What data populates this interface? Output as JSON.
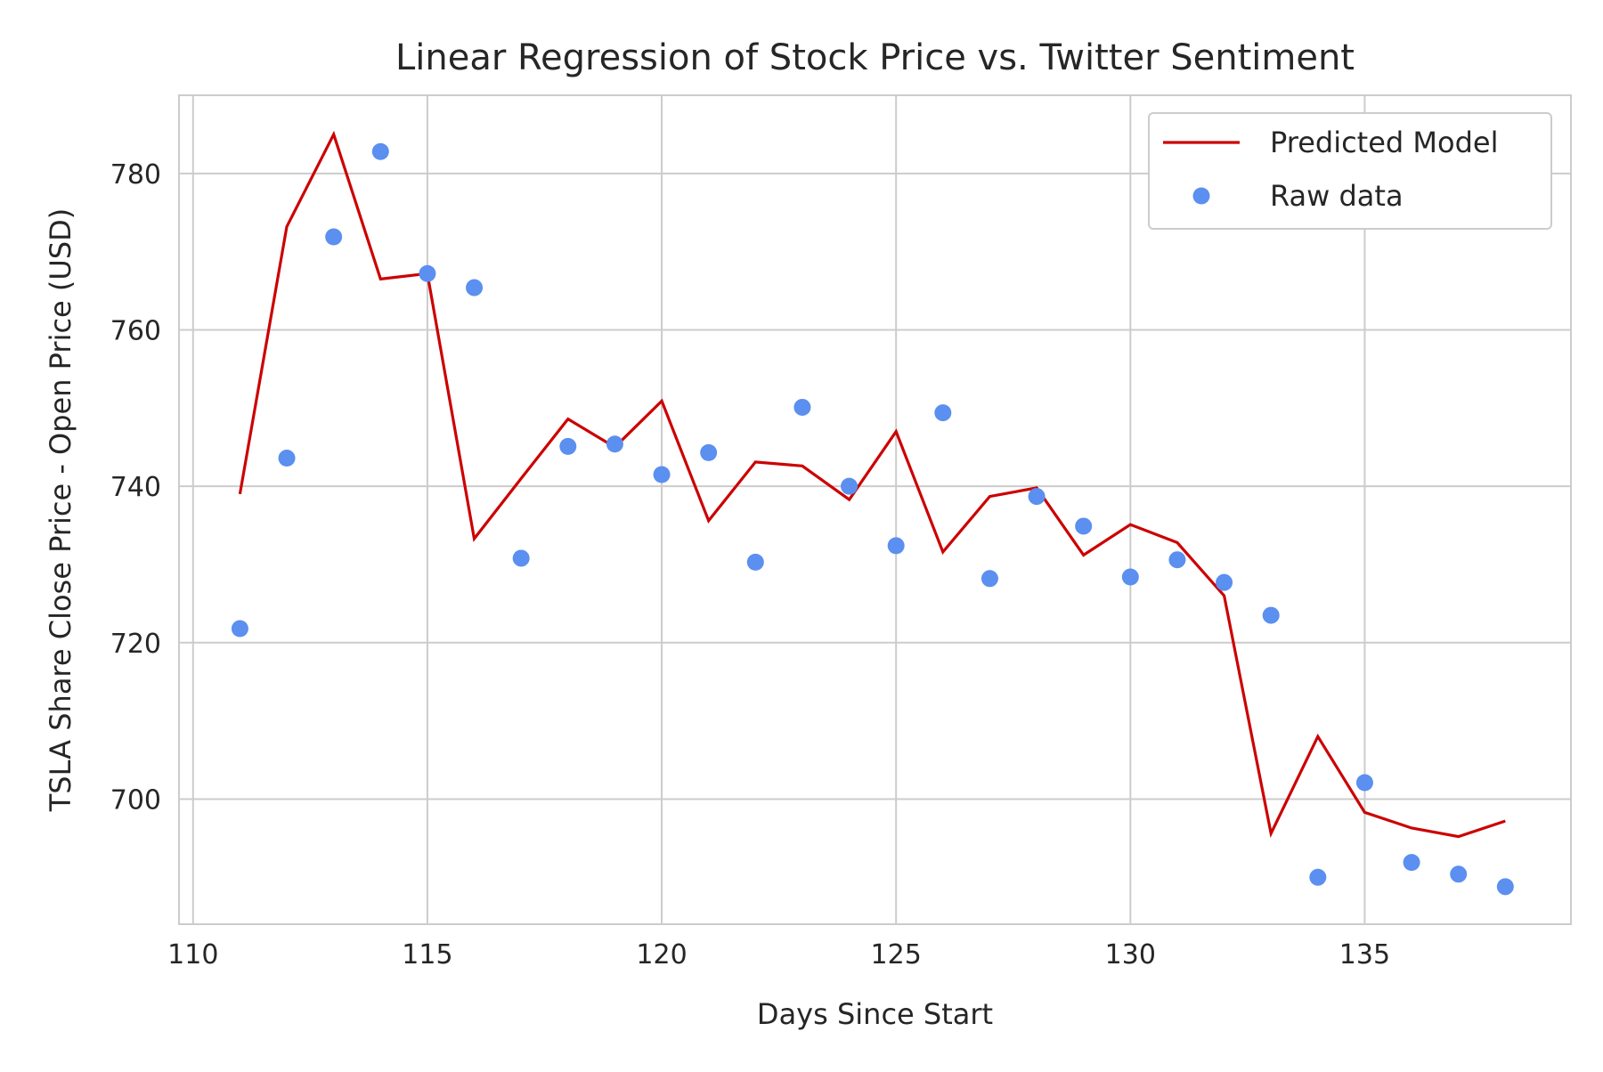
{
  "chart_data": {
    "type": "line",
    "title": "Linear Regression of Stock Price vs. Twitter Sentiment",
    "xlabel": "Days Since Start",
    "ylabel": "TSLA Share Close Price - Open Price (USD)",
    "xlim": [
      109.7,
      139.4
    ],
    "ylim": [
      684,
      790
    ],
    "xticks": [
      110,
      115,
      120,
      125,
      130,
      135
    ],
    "yticks": [
      700,
      720,
      740,
      760,
      780
    ],
    "grid": true,
    "legend_position": "top-right",
    "series": [
      {
        "name": "Predicted Model",
        "kind": "line",
        "color": "#cc0000",
        "x": [
          111,
          112,
          113,
          114,
          115,
          116,
          117,
          118,
          119,
          120,
          121,
          122,
          123,
          124,
          125,
          126,
          127,
          128,
          129,
          130,
          131,
          132,
          133,
          134,
          135,
          136,
          137,
          138
        ],
        "y": [
          739.0,
          773.2,
          785.0,
          766.5,
          767.2,
          733.3,
          741.0,
          748.6,
          745.0,
          750.9,
          735.6,
          743.1,
          742.6,
          738.3,
          747.0,
          731.6,
          738.7,
          739.8,
          731.2,
          735.1,
          732.8,
          726.0,
          695.6,
          708.0,
          698.3,
          696.3,
          695.2,
          697.2
        ]
      },
      {
        "name": "Raw data",
        "kind": "scatter",
        "color": "#5b8ff0",
        "x": [
          111,
          112,
          113,
          114,
          115,
          116,
          117,
          118,
          119,
          120,
          121,
          122,
          123,
          124,
          125,
          126,
          127,
          128,
          129,
          130,
          131,
          132,
          133,
          134,
          135,
          136,
          137,
          138
        ],
        "y": [
          721.8,
          743.6,
          771.9,
          782.8,
          767.2,
          765.4,
          730.8,
          745.1,
          745.4,
          741.5,
          744.3,
          730.3,
          750.1,
          740.0,
          732.4,
          749.4,
          728.2,
          738.7,
          734.9,
          728.4,
          730.6,
          727.7,
          723.5,
          690.0,
          702.1,
          691.9,
          690.4,
          688.8
        ]
      }
    ]
  }
}
